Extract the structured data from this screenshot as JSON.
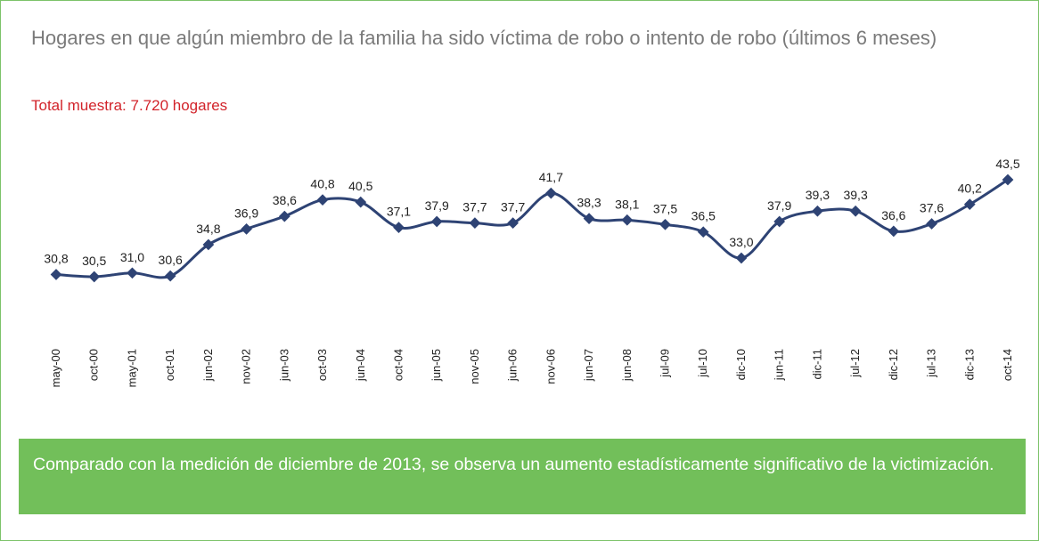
{
  "chart_data": {
    "type": "line",
    "title": "Hogares en que algún miembro de la familia ha sido víctima de robo o intento de robo (últimos 6 meses)",
    "subtitle": "Total muestra: 7.720 hogares",
    "annotation": "Comparado con la medición de diciembre de 2013, se observa un aumento estadísticamente significativo de la victimización.",
    "categories": [
      "may-00",
      "oct-00",
      "may-01",
      "oct-01",
      "jun-02",
      "nov-02",
      "jun-03",
      "oct-03",
      "jun-04",
      "oct-04",
      "jun-05",
      "nov-05",
      "jun-06",
      "nov-06",
      "jun-07",
      "jun-08",
      "jul-09",
      "jul-10",
      "dic-10",
      "jun-11",
      "dic-11",
      "jul-12",
      "dic-12",
      "jul-13",
      "dic-13",
      "oct-14"
    ],
    "values": [
      30.8,
      30.5,
      31.0,
      30.6,
      34.8,
      36.9,
      38.6,
      40.8,
      40.5,
      37.1,
      37.9,
      37.7,
      37.7,
      41.7,
      38.3,
      38.1,
      37.5,
      36.5,
      33.0,
      37.9,
      39.3,
      39.3,
      36.6,
      37.6,
      40.2,
      43.5
    ],
    "value_labels": [
      "30,8",
      "30,5",
      "31,0",
      "30,6",
      "34,8",
      "36,9",
      "38,6",
      "40,8",
      "40,5",
      "37,1",
      "37,9",
      "37,7",
      "37,7",
      "41,7",
      "38,3",
      "38,1",
      "37,5",
      "36,5",
      "33,0",
      "37,9",
      "39,3",
      "39,3",
      "36,6",
      "37,6",
      "40,2",
      "43,5"
    ],
    "color": "#2e4374"
  }
}
